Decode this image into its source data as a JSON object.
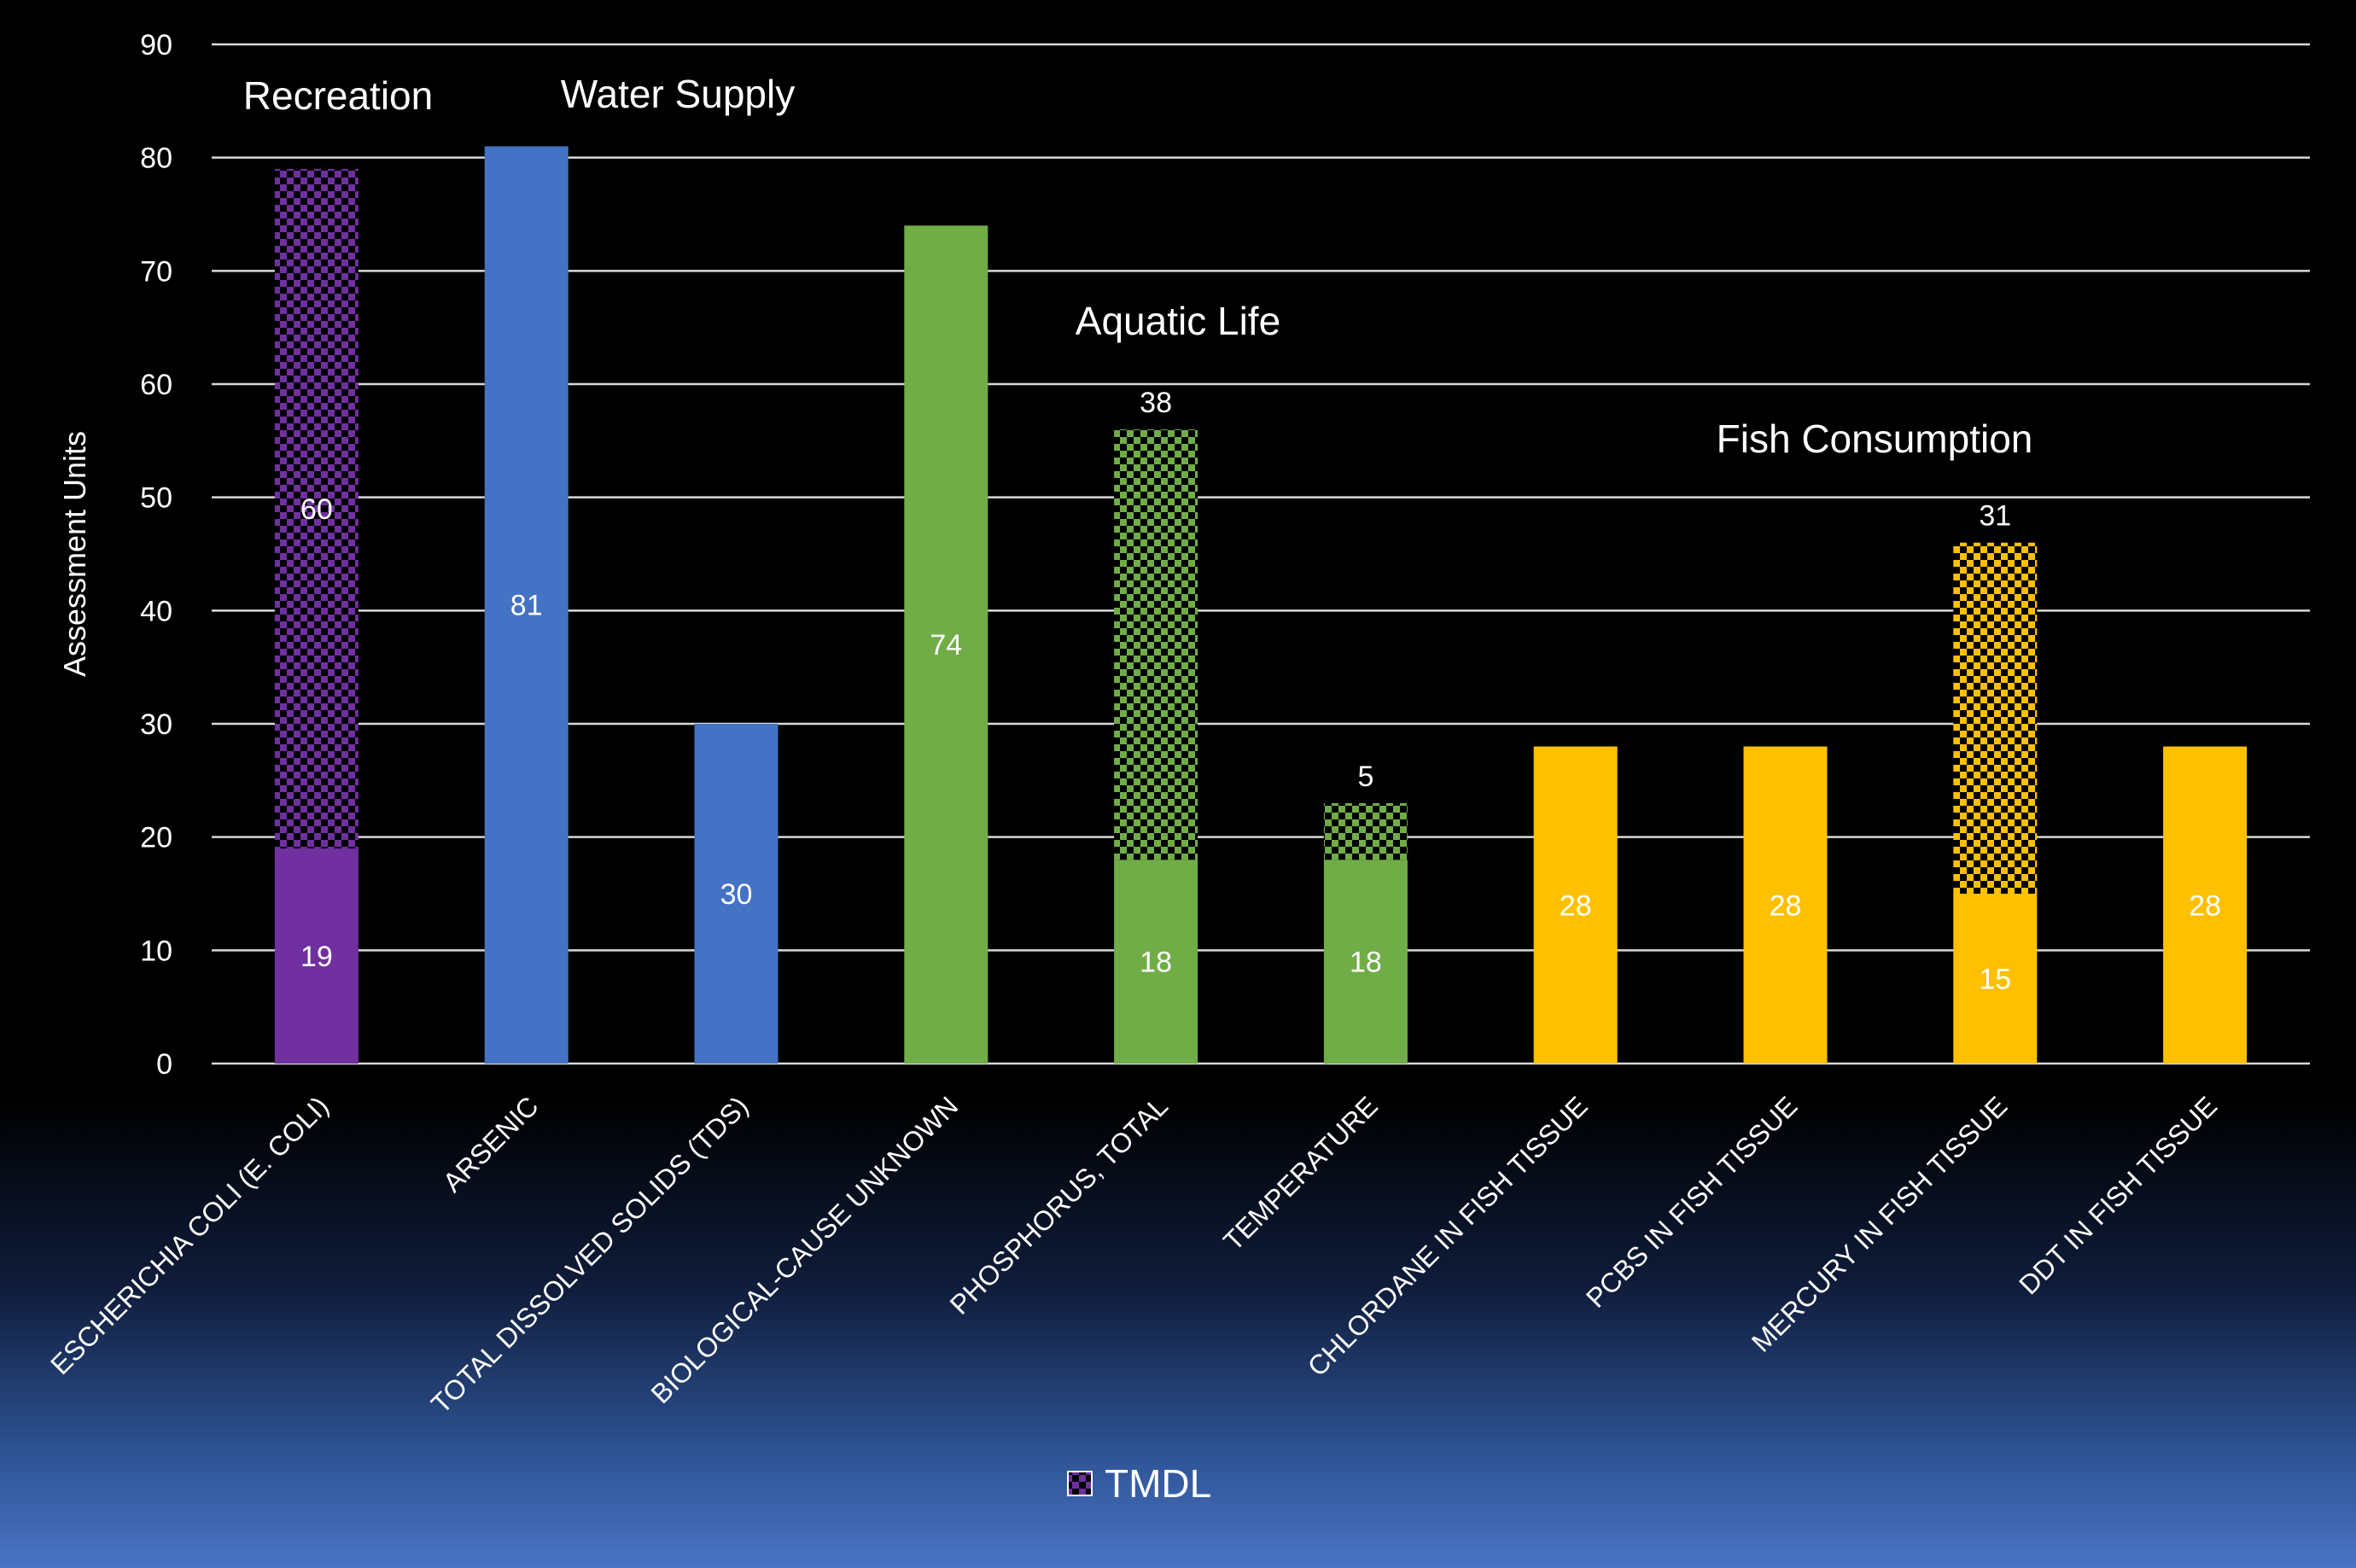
{
  "chart_data": {
    "type": "bar",
    "stacked": true,
    "ylabel": "Assessment Units",
    "ylim": [
      0,
      90
    ],
    "yticks": [
      0,
      10,
      20,
      30,
      40,
      50,
      60,
      70,
      80,
      90
    ],
    "grid": true,
    "background": "#000000",
    "categories": [
      "ESCHERICHIA COLI (E. COLI)",
      "ARSENIC",
      "TOTAL DISSOLVED SOLIDS (TDS)",
      "BIOLOGICAL-CAUSE UNKNOWN",
      "PHOSPHORUS, TOTAL",
      "TEMPERATURE",
      "CHLORDANE IN FISH TISSUE",
      "PCBS IN FISH TISSUE",
      "MERCURY IN FISH TISSUE",
      "DDT IN FISH TISSUE"
    ],
    "colors": [
      "#7030a0",
      "#4472c4",
      "#4472c4",
      "#70ad47",
      "#70ad47",
      "#70ad47",
      "#ffc000",
      "#ffc000",
      "#ffc000",
      "#ffc000"
    ],
    "series": [
      {
        "values": [
          19,
          81,
          30,
          74,
          18,
          18,
          28,
          28,
          15,
          28
        ],
        "pattern": "solid"
      },
      {
        "name": "TMDL",
        "values": [
          60,
          0,
          0,
          0,
          38,
          5,
          0,
          0,
          31,
          0
        ],
        "pattern": "checkerboard"
      }
    ],
    "data_labels": [
      [
        "19",
        "81",
        "30",
        "74",
        "18",
        "18",
        "28",
        "28",
        "15",
        "28"
      ],
      [
        "60",
        "",
        "",
        "",
        "38",
        "5",
        "",
        "",
        "31",
        ""
      ]
    ],
    "group_labels": [
      "Recreation",
      "Water Supply",
      "Aquatic Life",
      "Fish Consumption"
    ],
    "legend": {
      "position": "bottom",
      "entries": [
        "TMDL"
      ]
    }
  }
}
